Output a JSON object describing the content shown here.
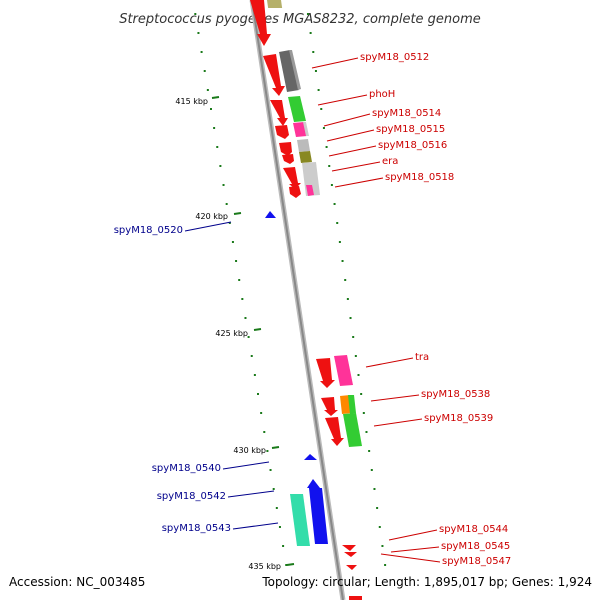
{
  "title": "Streptococcus pyogenes MGAS8232, complete genome",
  "footer": {
    "accession": "Accession: NC_003485",
    "summary": "Topology: circular; Length: 1,895,017 bp; Genes: 1,924"
  },
  "scale_labels": [
    "415 kbp",
    "420 kbp",
    "425 kbp",
    "430 kbp",
    "435 kbp"
  ],
  "colors": {
    "forward_label": "#cc0000",
    "reverse_label": "#00008b",
    "backbone": "#999999",
    "tick": "#1a7a1a"
  },
  "gene_labels": [
    {
      "text": "spyM18_0512",
      "strand": "forward"
    },
    {
      "text": "phoH",
      "strand": "forward"
    },
    {
      "text": "spyM18_0514",
      "strand": "forward"
    },
    {
      "text": "spyM18_0515",
      "strand": "forward"
    },
    {
      "text": "spyM18_0516",
      "strand": "forward"
    },
    {
      "text": "era",
      "strand": "forward"
    },
    {
      "text": "spyM18_0518",
      "strand": "forward"
    },
    {
      "text": "spyM18_0520",
      "strand": "reverse"
    },
    {
      "text": "tra",
      "strand": "forward"
    },
    {
      "text": "spyM18_0538",
      "strand": "forward"
    },
    {
      "text": "spyM18_0539",
      "strand": "forward"
    },
    {
      "text": "spyM18_0540",
      "strand": "reverse"
    },
    {
      "text": "spyM18_0542",
      "strand": "reverse"
    },
    {
      "text": "spyM18_0543",
      "strand": "reverse"
    },
    {
      "text": "spyM18_0544",
      "strand": "forward"
    },
    {
      "text": "spyM18_0545",
      "strand": "forward"
    },
    {
      "text": "spyM18_0547",
      "strand": "forward"
    }
  ]
}
